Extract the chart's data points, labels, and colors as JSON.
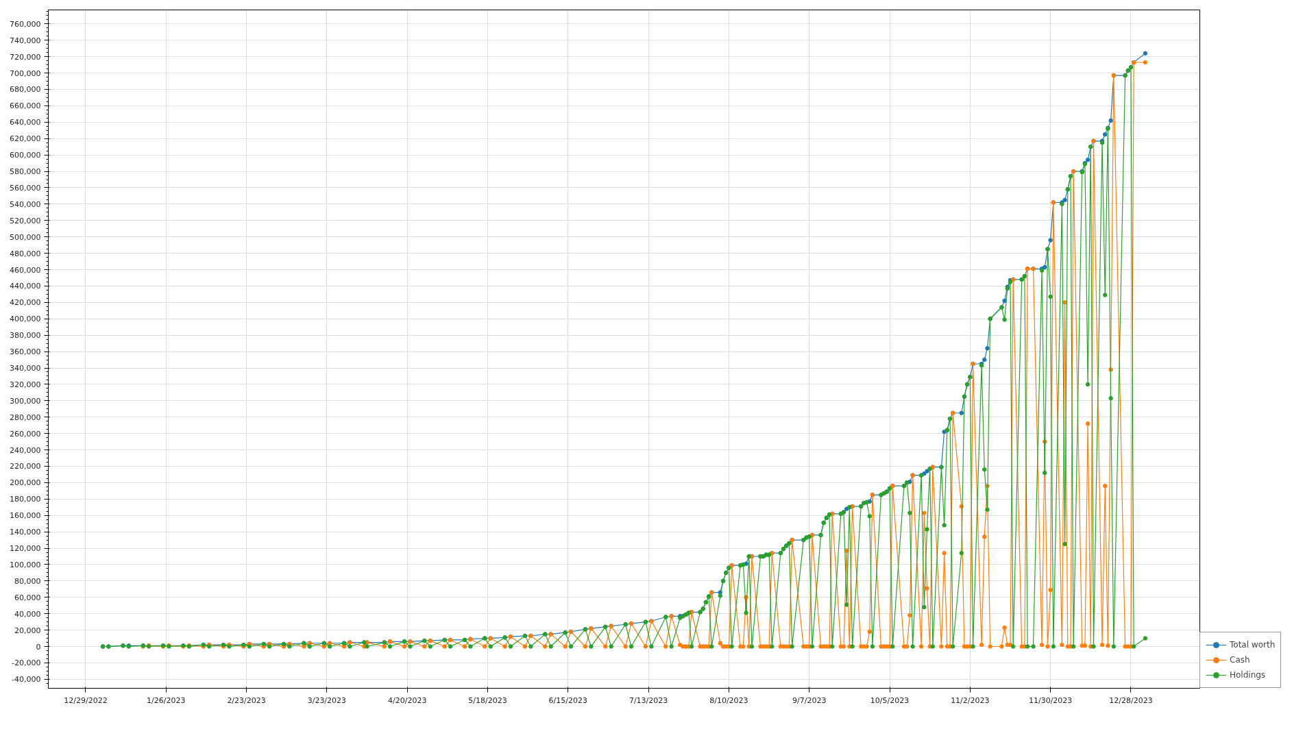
{
  "chart_data": {
    "type": "line",
    "marker": "circle",
    "line_style": "solid",
    "grid": true,
    "legend": "bottom right",
    "xlim": [
      "2022-12-16",
      "2024-01-21"
    ],
    "xticks": [
      {
        "value": "2022-12-29",
        "label": "12/29/2022"
      },
      {
        "value": "2023-01-26",
        "label": "1/26/2023"
      },
      {
        "value": "2023-02-23",
        "label": "2/23/2023"
      },
      {
        "value": "2023-03-23",
        "label": "3/23/2023"
      },
      {
        "value": "2023-04-20",
        "label": "4/20/2023"
      },
      {
        "value": "2023-05-18",
        "label": "5/18/2023"
      },
      {
        "value": "2023-06-15",
        "label": "6/15/2023"
      },
      {
        "value": "2023-07-13",
        "label": "7/13/2023"
      },
      {
        "value": "2023-08-10",
        "label": "8/10/2023"
      },
      {
        "value": "2023-09-07",
        "label": "9/7/2023"
      },
      {
        "value": "2023-10-05",
        "label": "10/5/2023"
      },
      {
        "value": "2023-11-02",
        "label": "11/2/2023"
      },
      {
        "value": "2023-11-30",
        "label": "11/30/2023"
      },
      {
        "value": "2023-12-28",
        "label": "12/28/2023"
      }
    ],
    "ylim": [
      -51000,
      777000
    ],
    "yticks": [
      {
        "value": -40000,
        "label": "-40,000"
      },
      {
        "value": -20000,
        "label": "-20,000"
      },
      {
        "value": 0,
        "label": "0"
      },
      {
        "value": 20000,
        "label": "20,000"
      },
      {
        "value": 40000,
        "label": "40,000"
      },
      {
        "value": 60000,
        "label": "60,000"
      },
      {
        "value": 80000,
        "label": "80,000"
      },
      {
        "value": 100000,
        "label": "100,000"
      },
      {
        "value": 120000,
        "label": "120,000"
      },
      {
        "value": 140000,
        "label": "140,000"
      },
      {
        "value": 160000,
        "label": "160,000"
      },
      {
        "value": 180000,
        "label": "180,000"
      },
      {
        "value": 200000,
        "label": "200,000"
      },
      {
        "value": 220000,
        "label": "220,000"
      },
      {
        "value": 240000,
        "label": "240,000"
      },
      {
        "value": 260000,
        "label": "260,000"
      },
      {
        "value": 280000,
        "label": "280,000"
      },
      {
        "value": 300000,
        "label": "300,000"
      },
      {
        "value": 320000,
        "label": "320,000"
      },
      {
        "value": 340000,
        "label": "340,000"
      },
      {
        "value": 360000,
        "label": "360,000"
      },
      {
        "value": 380000,
        "label": "380,000"
      },
      {
        "value": 400000,
        "label": "400,000"
      },
      {
        "value": 420000,
        "label": "420,000"
      },
      {
        "value": 440000,
        "label": "440,000"
      },
      {
        "value": 460000,
        "label": "460,000"
      },
      {
        "value": 480000,
        "label": "480,000"
      },
      {
        "value": 500000,
        "label": "500,000"
      },
      {
        "value": 520000,
        "label": "520,000"
      },
      {
        "value": 540000,
        "label": "540,000"
      },
      {
        "value": 560000,
        "label": "560,000"
      },
      {
        "value": 580000,
        "label": "580,000"
      },
      {
        "value": 600000,
        "label": "600,000"
      },
      {
        "value": 620000,
        "label": "620,000"
      },
      {
        "value": 640000,
        "label": "640,000"
      },
      {
        "value": 660000,
        "label": "660,000"
      },
      {
        "value": 680000,
        "label": "680,000"
      },
      {
        "value": 700000,
        "label": "700,000"
      },
      {
        "value": 720000,
        "label": "720,000"
      },
      {
        "value": 740000,
        "label": "740,000"
      },
      {
        "value": 760000,
        "label": "760,000"
      }
    ],
    "x": [
      "2023-01-04",
      "2023-01-06",
      "2023-01-11",
      "2023-01-13",
      "2023-01-18",
      "2023-01-20",
      "2023-01-25",
      "2023-01-27",
      "2023-02-01",
      "2023-02-03",
      "2023-02-08",
      "2023-02-10",
      "2023-02-15",
      "2023-02-17",
      "2023-02-22",
      "2023-02-24",
      "2023-03-01",
      "2023-03-03",
      "2023-03-08",
      "2023-03-10",
      "2023-03-15",
      "2023-03-17",
      "2023-03-22",
      "2023-03-24",
      "2023-03-29",
      "2023-03-31",
      "2023-04-05",
      "2023-04-06",
      "2023-04-12",
      "2023-04-14",
      "2023-04-19",
      "2023-04-21",
      "2023-04-26",
      "2023-04-28",
      "2023-05-03",
      "2023-05-05",
      "2023-05-10",
      "2023-05-12",
      "2023-05-17",
      "2023-05-19",
      "2023-05-24",
      "2023-05-26",
      "2023-05-31",
      "2023-06-02",
      "2023-06-07",
      "2023-06-09",
      "2023-06-14",
      "2023-06-16",
      "2023-06-21",
      "2023-06-23",
      "2023-06-28",
      "2023-06-30",
      "2023-07-05",
      "2023-07-07",
      "2023-07-12",
      "2023-07-14",
      "2023-07-19",
      "2023-07-21",
      "2023-07-24",
      "2023-07-25",
      "2023-07-26",
      "2023-07-27",
      "2023-07-28",
      "2023-07-31",
      "2023-08-01",
      "2023-08-02",
      "2023-08-03",
      "2023-08-04",
      "2023-08-07",
      "2023-08-08",
      "2023-08-09",
      "2023-08-10",
      "2023-08-11",
      "2023-08-14",
      "2023-08-15",
      "2023-08-16",
      "2023-08-17",
      "2023-08-18",
      "2023-08-21",
      "2023-08-22",
      "2023-08-23",
      "2023-08-24",
      "2023-08-25",
      "2023-08-28",
      "2023-08-29",
      "2023-08-30",
      "2023-08-31",
      "2023-09-01",
      "2023-09-05",
      "2023-09-06",
      "2023-09-07",
      "2023-09-08",
      "2023-09-11",
      "2023-09-12",
      "2023-09-13",
      "2023-09-14",
      "2023-09-15",
      "2023-09-18",
      "2023-09-19",
      "2023-09-20",
      "2023-09-21",
      "2023-09-22",
      "2023-09-25",
      "2023-09-26",
      "2023-09-27",
      "2023-09-28",
      "2023-09-29",
      "2023-10-02",
      "2023-10-03",
      "2023-10-04",
      "2023-10-05",
      "2023-10-06",
      "2023-10-10",
      "2023-10-11",
      "2023-10-12",
      "2023-10-13",
      "2023-10-16",
      "2023-10-17",
      "2023-10-18",
      "2023-10-19",
      "2023-10-20",
      "2023-10-23",
      "2023-10-24",
      "2023-10-25",
      "2023-10-26",
      "2023-10-27",
      "2023-10-30",
      "2023-10-31",
      "2023-11-01",
      "2023-11-02",
      "2023-11-03",
      "2023-11-06",
      "2023-11-07",
      "2023-11-08",
      "2023-11-09",
      "2023-11-13",
      "2023-11-14",
      "2023-11-15",
      "2023-11-16",
      "2023-11-17",
      "2023-11-20",
      "2023-11-21",
      "2023-11-22",
      "2023-11-24",
      "2023-11-27",
      "2023-11-28",
      "2023-11-29",
      "2023-11-30",
      "2023-12-01",
      "2023-12-04",
      "2023-12-05",
      "2023-12-06",
      "2023-12-07",
      "2023-12-08",
      "2023-12-11",
      "2023-12-12",
      "2023-12-13",
      "2023-12-14",
      "2023-12-15",
      "2023-12-18",
      "2023-12-19",
      "2023-12-20",
      "2023-12-21",
      "2023-12-22",
      "2023-12-26",
      "2023-12-27",
      "2023-12-28",
      "2023-12-29",
      "2024-01-02"
    ],
    "series": [
      {
        "name": "Total worth",
        "color": "#1f77b4",
        "values": [
          0,
          0,
          1000,
          1000,
          1000,
          1000,
          1000,
          1000,
          1000,
          1000,
          2000,
          2000,
          2000,
          2000,
          2000,
          3000,
          3000,
          3000,
          3000,
          3000,
          4000,
          4000,
          4000,
          4000,
          4000,
          5000,
          5000,
          5000,
          5000,
          6000,
          6000,
          6000,
          7000,
          7000,
          8000,
          8000,
          8000,
          9000,
          10000,
          10000,
          11000,
          12000,
          13000,
          13000,
          15000,
          15000,
          17000,
          18000,
          21000,
          22000,
          24000,
          25000,
          27000,
          28000,
          30000,
          31000,
          36000,
          37000,
          37000,
          37000,
          39000,
          41000,
          42000,
          42000,
          46000,
          54000,
          61000,
          66000,
          66000,
          80000,
          90000,
          96000,
          99000,
          99000,
          100000,
          101000,
          110000,
          110000,
          110000,
          110000,
          112000,
          112000,
          114000,
          114000,
          119000,
          123000,
          126000,
          130000,
          130000,
          133000,
          134000,
          136000,
          136000,
          151000,
          157000,
          161000,
          162000,
          162000,
          164000,
          168000,
          170000,
          171000,
          171000,
          175000,
          176000,
          177000,
          185000,
          185000,
          187000,
          189000,
          193000,
          196000,
          196000,
          200000,
          201000,
          209000,
          209000,
          211000,
          214000,
          217000,
          219000,
          219000,
          262000,
          264000,
          278000,
          285000,
          285000,
          305000,
          320000,
          329000,
          345000,
          345000,
          350000,
          364000,
          400000,
          414000,
          422000,
          439000,
          447000,
          448000,
          448000,
          452000,
          461000,
          461000,
          461000,
          463000,
          485000,
          496000,
          542000,
          542000,
          545000,
          558000,
          574000,
          580000,
          580000,
          590000,
          594000,
          610000,
          617000,
          617000,
          625000,
          633000,
          642000,
          697000,
          697000,
          703000,
          707000,
          713000,
          724000
        ]
      },
      {
        "name": "Cash",
        "color": "#ff7f0e",
        "values": [
          null,
          null,
          null,
          null,
          0,
          1000,
          0,
          1000,
          0,
          1000,
          0,
          2000,
          0,
          2000,
          0,
          3000,
          0,
          3000,
          0,
          3000,
          0,
          4000,
          0,
          4000,
          0,
          5000,
          0,
          5000,
          0,
          6000,
          0,
          6000,
          0,
          7000,
          0,
          8000,
          0,
          9000,
          0,
          10000,
          0,
          12000,
          0,
          13000,
          0,
          15000,
          0,
          18000,
          0,
          22000,
          0,
          25000,
          0,
          28000,
          0,
          31000,
          0,
          37000,
          2000,
          0,
          0,
          0,
          42000,
          0,
          0,
          0,
          0,
          66000,
          4000,
          0,
          0,
          0,
          99000,
          0,
          0,
          60000,
          0,
          110000,
          0,
          0,
          0,
          0,
          114000,
          0,
          0,
          0,
          0,
          130000,
          0,
          0,
          0,
          136000,
          0,
          0,
          0,
          0,
          162000,
          0,
          0,
          117000,
          0,
          171000,
          0,
          0,
          0,
          18000,
          185000,
          0,
          0,
          0,
          0,
          196000,
          0,
          0,
          38000,
          209000,
          0,
          163000,
          71000,
          0,
          219000,
          0,
          114000,
          0,
          0,
          285000,
          171000,
          0,
          0,
          0,
          345000,
          2000,
          134000,
          196000,
          0,
          0,
          23000,
          2000,
          2000,
          448000,
          0,
          0,
          461000,
          461000,
          2000,
          250000,
          0,
          69000,
          542000,
          2000,
          420000,
          0,
          0,
          580000,
          1000,
          1000,
          272000,
          0,
          617000,
          2000,
          196000,
          1000,
          338000,
          697000,
          0,
          0,
          0,
          713000,
          713000
        ]
      },
      {
        "name": "Holdings",
        "color": "#2ca02c",
        "values": [
          0,
          0,
          1000,
          0,
          1000,
          0,
          1000,
          0,
          1000,
          0,
          2000,
          0,
          2000,
          0,
          2000,
          0,
          3000,
          0,
          3000,
          0,
          4000,
          0,
          4000,
          0,
          4000,
          0,
          5000,
          0,
          5000,
          0,
          6000,
          0,
          7000,
          0,
          8000,
          0,
          8000,
          0,
          10000,
          0,
          11000,
          0,
          13000,
          0,
          15000,
          0,
          17000,
          0,
          21000,
          0,
          24000,
          0,
          27000,
          0,
          30000,
          0,
          36000,
          0,
          35000,
          37000,
          39000,
          41000,
          0,
          42000,
          46000,
          54000,
          61000,
          0,
          62000,
          80000,
          90000,
          96000,
          0,
          99000,
          100000,
          41000,
          110000,
          0,
          110000,
          110000,
          112000,
          112000,
          0,
          114000,
          119000,
          123000,
          126000,
          0,
          130000,
          133000,
          134000,
          0,
          136000,
          151000,
          157000,
          161000,
          0,
          162000,
          164000,
          51000,
          170000,
          0,
          171000,
          175000,
          176000,
          159000,
          0,
          185000,
          187000,
          189000,
          193000,
          0,
          196000,
          200000,
          163000,
          0,
          209000,
          48000,
          143000,
          217000,
          0,
          219000,
          148000,
          264000,
          278000,
          0,
          114000,
          305000,
          320000,
          329000,
          0,
          343000,
          216000,
          167000,
          400000,
          414000,
          399000,
          437000,
          445000,
          0,
          448000,
          452000,
          0,
          0,
          459000,
          212000,
          485000,
          427000,
          0,
          540000,
          125000,
          558000,
          574000,
          0,
          579000,
          589000,
          320000,
          610000,
          0,
          615000,
          429000,
          632000,
          303000,
          0,
          697000,
          703000,
          707000,
          0,
          10000
        ]
      }
    ]
  }
}
